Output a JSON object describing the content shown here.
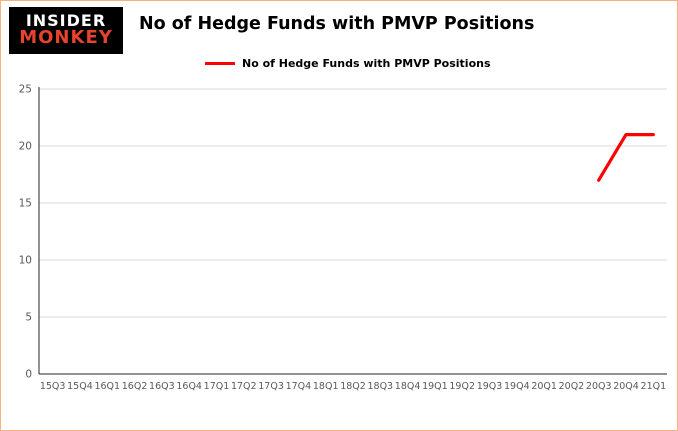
{
  "logo": {
    "line1": "INSIDER",
    "line2": "MONKEY"
  },
  "header": {
    "title": "No of Hedge Funds with PMVP Positions"
  },
  "legend": {
    "label": "No of Hedge Funds with PMVP Positions",
    "color": "#ff0000"
  },
  "colors": {
    "series_red": "#ff0000",
    "logo_red": "#e8432d",
    "grid": "#d9d9d9",
    "axis": "#262626",
    "tick_text": "#595959",
    "frame_border": "#f4b183"
  },
  "chart_data": {
    "type": "line",
    "title": "No of Hedge Funds with PMVP Positions",
    "categories": [
      "15Q3",
      "15Q4",
      "16Q1",
      "16Q2",
      "16Q3",
      "16Q4",
      "17Q1",
      "17Q2",
      "17Q3",
      "17Q4",
      "18Q1",
      "18Q2",
      "18Q3",
      "18Q4",
      "19Q1",
      "19Q2",
      "19Q3",
      "19Q4",
      "20Q1",
      "20Q2",
      "20Q3",
      "20Q4",
      "21Q1"
    ],
    "series": [
      {
        "name": "No of Hedge Funds with PMVP Positions",
        "color": "#ff0000",
        "values": [
          null,
          null,
          null,
          null,
          null,
          null,
          null,
          null,
          null,
          null,
          null,
          null,
          null,
          null,
          null,
          null,
          null,
          null,
          null,
          null,
          17,
          21,
          21
        ]
      }
    ],
    "xlabel": "",
    "ylabel": "",
    "ylim": [
      0,
      25
    ],
    "yticks": [
      0,
      5,
      10,
      15,
      20,
      25
    ],
    "grid": true,
    "legend_position": "top"
  }
}
